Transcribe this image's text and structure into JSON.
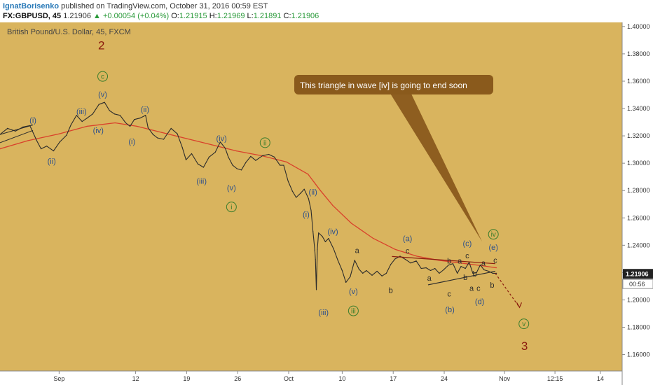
{
  "header": {
    "author": "IgnatBorisenko",
    "published": "published on TradingView.com, October 31, 2016 00:59 EST",
    "symbol": "FX:GBPUSD, 45",
    "last": "1.21906",
    "change": "+0.00054 (+0.04%)",
    "o_label": "O:",
    "o_value": "1.21915",
    "h_label": "H:",
    "h_value": "1.21969",
    "l_label": "L:",
    "l_value": "1.21891",
    "c_label": "C:",
    "c_value": "1.21906"
  },
  "chart_data": {
    "type": "line",
    "title": "British Pound/U.S. Dollar, 45, FXCM",
    "ylim": [
      1.148,
      1.403
    ],
    "xlim": [
      0,
      100
    ],
    "y_ticks": [
      "1.40000",
      "1.38000",
      "1.36000",
      "1.34000",
      "1.32000",
      "1.30000",
      "1.28000",
      "1.26000",
      "1.24000",
      "1.22000",
      "1.20000",
      "1.18000",
      "1.16000"
    ],
    "x_ticks": [
      {
        "label": "Sep",
        "x": 9.5
      },
      {
        "label": "12",
        "x": 21.8
      },
      {
        "label": "19",
        "x": 30.0
      },
      {
        "label": "26",
        "x": 38.2
      },
      {
        "label": "Oct",
        "x": 46.4
      },
      {
        "label": "10",
        "x": 55.0
      },
      {
        "label": "17",
        "x": 63.2
      },
      {
        "label": "24",
        "x": 71.4
      },
      {
        "label": "Nov",
        "x": 81.1
      },
      {
        "label": "12:15",
        "x": 89.2
      },
      {
        "label": "14",
        "x": 96.5
      }
    ],
    "last_price": "1.21906",
    "countdown": "00:56",
    "annotation": "This triangle in wave [iv] is going to end soon",
    "colors": {
      "background": "#d9b45e",
      "price": "#2b2b2b",
      "ma": "#d9412b",
      "wave_blue": "#2b4f8c",
      "wave_green": "#3a7d2c",
      "wave_red": "#8b1c0e",
      "callout": "#8a5a1c"
    },
    "series": [
      {
        "values": [
          [
            0.0,
            1.321
          ],
          [
            1.2,
            1.3255
          ],
          [
            2.5,
            1.3235
          ],
          [
            3.7,
            1.3265
          ],
          [
            4.8,
            1.3275
          ],
          [
            5.9,
            1.3165
          ],
          [
            6.6,
            1.3105
          ],
          [
            7.5,
            1.3125
          ],
          [
            8.6,
            1.309
          ],
          [
            9.6,
            1.3155
          ],
          [
            10.7,
            1.3205
          ],
          [
            11.4,
            1.328
          ],
          [
            12.3,
            1.335
          ],
          [
            13.2,
            1.3305
          ],
          [
            14.0,
            1.333
          ],
          [
            14.9,
            1.336
          ],
          [
            15.9,
            1.343
          ],
          [
            16.8,
            1.3445
          ],
          [
            17.6,
            1.3385
          ],
          [
            18.4,
            1.336
          ],
          [
            19.3,
            1.335
          ],
          [
            20.2,
            1.3295
          ],
          [
            20.9,
            1.327
          ],
          [
            21.6,
            1.332
          ],
          [
            22.5,
            1.333
          ],
          [
            23.4,
            1.335
          ],
          [
            23.8,
            1.326
          ],
          [
            24.6,
            1.321
          ],
          [
            25.3,
            1.3185
          ],
          [
            26.3,
            1.3175
          ],
          [
            27.5,
            1.3255
          ],
          [
            28.5,
            1.3215
          ],
          [
            29.3,
            1.3115
          ],
          [
            29.9,
            1.3025
          ],
          [
            30.8,
            1.307
          ],
          [
            31.8,
            1.2995
          ],
          [
            32.7,
            1.297
          ],
          [
            33.6,
            1.3045
          ],
          [
            34.6,
            1.308
          ],
          [
            35.4,
            1.3155
          ],
          [
            36.2,
            1.311
          ],
          [
            36.7,
            1.3045
          ],
          [
            37.4,
            1.2985
          ],
          [
            38.1,
            1.296
          ],
          [
            38.8,
            1.295
          ],
          [
            39.5,
            1.3005
          ],
          [
            40.3,
            1.305
          ],
          [
            41.1,
            1.302
          ],
          [
            42.2,
            1.3055
          ],
          [
            43.2,
            1.3065
          ],
          [
            44.1,
            1.3045
          ],
          [
            45.0,
            1.2985
          ],
          [
            45.6,
            1.2985
          ],
          [
            46.3,
            1.287
          ],
          [
            47.0,
            1.2795
          ],
          [
            47.6,
            1.275
          ],
          [
            48.3,
            1.278
          ],
          [
            48.9,
            1.281
          ],
          [
            49.6,
            1.274
          ],
          [
            50.0,
            1.2655
          ],
          [
            50.3,
            1.25
          ],
          [
            50.6,
            1.2365
          ],
          [
            50.7,
            1.2295
          ],
          [
            50.85,
            1.2075
          ],
          [
            51.0,
            1.237
          ],
          [
            51.2,
            1.249
          ],
          [
            51.8,
            1.2465
          ],
          [
            52.3,
            1.2425
          ],
          [
            52.8,
            1.245
          ],
          [
            53.6,
            1.2375
          ],
          [
            54.3,
            1.229
          ],
          [
            55.0,
            1.2215
          ],
          [
            55.6,
            1.2128
          ],
          [
            56.3,
            1.217
          ],
          [
            57.0,
            1.229
          ],
          [
            57.7,
            1.2225
          ],
          [
            58.3,
            1.2195
          ],
          [
            58.9,
            1.2215
          ],
          [
            59.8,
            1.218
          ],
          [
            60.6,
            1.221
          ],
          [
            61.4,
            1.2175
          ],
          [
            62.1,
            1.2195
          ],
          [
            62.8,
            1.226
          ],
          [
            63.5,
            1.23
          ],
          [
            64.3,
            1.232
          ],
          [
            65.2,
            1.2295
          ],
          [
            66.0,
            1.227
          ],
          [
            66.9,
            1.2285
          ],
          [
            67.7,
            1.223
          ],
          [
            68.5,
            1.2235
          ],
          [
            69.2,
            1.2215
          ],
          [
            69.9,
            1.223
          ],
          [
            70.6,
            1.2195
          ],
          [
            71.3,
            1.222
          ],
          [
            72.1,
            1.2255
          ],
          [
            72.8,
            1.2265
          ],
          [
            73.5,
            1.2195
          ],
          [
            74.1,
            1.2245
          ],
          [
            74.8,
            1.223
          ],
          [
            75.4,
            1.2275
          ],
          [
            76.0,
            1.2195
          ],
          [
            76.6,
            1.22
          ],
          [
            77.2,
            1.2255
          ],
          [
            77.8,
            1.222
          ],
          [
            78.5,
            1.221
          ],
          [
            79.2,
            1.2195
          ],
          [
            79.8,
            1.2195
          ]
        ]
      },
      {
        "values": [
          [
            0.0,
            1.3105
          ],
          [
            4.5,
            1.3165
          ],
          [
            9.5,
            1.3215
          ],
          [
            14.0,
            1.327
          ],
          [
            18.5,
            1.3295
          ],
          [
            22.0,
            1.327
          ],
          [
            26.0,
            1.3225
          ],
          [
            30.0,
            1.318
          ],
          [
            34.0,
            1.3135
          ],
          [
            38.0,
            1.309
          ],
          [
            42.0,
            1.3055
          ],
          [
            46.0,
            1.301
          ],
          [
            49.5,
            1.292
          ],
          [
            51.5,
            1.28
          ],
          [
            53.5,
            1.269
          ],
          [
            56.5,
            1.256
          ],
          [
            60.0,
            1.245
          ],
          [
            63.5,
            1.237
          ],
          [
            67.0,
            1.232
          ],
          [
            70.5,
            1.229
          ],
          [
            74.0,
            1.227
          ],
          [
            77.5,
            1.225
          ],
          [
            79.8,
            1.2235
          ]
        ]
      }
    ],
    "triangle": [
      {
        "from": [
          63.0,
          1.2318
        ],
        "to": [
          79.6,
          1.2265
        ]
      },
      {
        "from": [
          68.8,
          1.211
        ],
        "to": [
          79.6,
          1.221
        ]
      }
    ],
    "projection": {
      "from": [
        79.6,
        1.2195
      ],
      "to": [
        83.5,
        1.1945
      ]
    },
    "wave_labels": [
      {
        "text": "(i)",
        "x": 5.3,
        "y": 1.3315,
        "style": "blue"
      },
      {
        "text": "(ii)",
        "x": 8.3,
        "y": 1.3015,
        "style": "blue"
      },
      {
        "text": "(iii)",
        "x": 13.1,
        "y": 1.338,
        "style": "blue"
      },
      {
        "text": "(iv)",
        "x": 15.8,
        "y": 1.324,
        "style": "blue"
      },
      {
        "text": "(v)",
        "x": 16.5,
        "y": 1.3505,
        "style": "blue"
      },
      {
        "text": "c",
        "x": 16.5,
        "y": 1.3635,
        "style": "greenCircle"
      },
      {
        "text": "2",
        "x": 16.3,
        "y": 1.3863,
        "style": "bigRed"
      },
      {
        "text": "(i)",
        "x": 21.2,
        "y": 1.316,
        "style": "blue"
      },
      {
        "text": "(ii)",
        "x": 23.3,
        "y": 1.3395,
        "style": "blue"
      },
      {
        "text": "(iii)",
        "x": 32.4,
        "y": 1.287,
        "style": "blue"
      },
      {
        "text": "(iv)",
        "x": 35.6,
        "y": 1.3183,
        "style": "blue"
      },
      {
        "text": "(v)",
        "x": 37.2,
        "y": 1.2822,
        "style": "blue"
      },
      {
        "text": "i",
        "x": 37.2,
        "y": 1.268,
        "style": "greenCircle"
      },
      {
        "text": "ii",
        "x": 42.6,
        "y": 1.315,
        "style": "greenCircle"
      },
      {
        "text": "(ii)",
        "x": 50.3,
        "y": 1.279,
        "style": "blue"
      },
      {
        "text": "(i)",
        "x": 49.2,
        "y": 1.2625,
        "style": "blue"
      },
      {
        "text": "(iv)",
        "x": 53.5,
        "y": 1.25,
        "style": "blue"
      },
      {
        "text": "(iii)",
        "x": 52.0,
        "y": 1.191,
        "style": "blue"
      },
      {
        "text": "(v)",
        "x": 56.8,
        "y": 1.2062,
        "style": "blue"
      },
      {
        "text": "iii",
        "x": 56.8,
        "y": 1.192,
        "style": "greenCircle"
      },
      {
        "text": "a",
        "x": 57.4,
        "y": 1.2362,
        "style": "dark"
      },
      {
        "text": "b",
        "x": 62.8,
        "y": 1.207,
        "style": "dark"
      },
      {
        "text": "(a)",
        "x": 65.5,
        "y": 1.245,
        "style": "blue"
      },
      {
        "text": "c",
        "x": 65.5,
        "y": 1.236,
        "style": "dark"
      },
      {
        "text": "a",
        "x": 69.0,
        "y": 1.216,
        "style": "dark"
      },
      {
        "text": "b",
        "x": 72.2,
        "y": 1.2285,
        "style": "dark"
      },
      {
        "text": "c",
        "x": 72.2,
        "y": 1.2045,
        "style": "dark"
      },
      {
        "text": "(b)",
        "x": 72.3,
        "y": 1.193,
        "style": "blue"
      },
      {
        "text": "a",
        "x": 73.9,
        "y": 1.2285,
        "style": "dark"
      },
      {
        "text": "c",
        "x": 75.1,
        "y": 1.2325,
        "style": "dark"
      },
      {
        "text": "(c)",
        "x": 75.1,
        "y": 1.2415,
        "style": "blue"
      },
      {
        "text": "b",
        "x": 74.8,
        "y": 1.2165,
        "style": "dark"
      },
      {
        "text": "b",
        "x": 76.3,
        "y": 1.219,
        "style": "dark"
      },
      {
        "text": "a",
        "x": 77.7,
        "y": 1.227,
        "style": "dark"
      },
      {
        "text": "a",
        "x": 75.8,
        "y": 1.2085,
        "style": "dark"
      },
      {
        "text": "c",
        "x": 76.9,
        "y": 1.2085,
        "style": "dark"
      },
      {
        "text": "(d)",
        "x": 77.1,
        "y": 1.199,
        "style": "blue"
      },
      {
        "text": "b",
        "x": 79.1,
        "y": 1.211,
        "style": "dark"
      },
      {
        "text": "c",
        "x": 79.6,
        "y": 1.229,
        "style": "dark"
      },
      {
        "text": "(e)",
        "x": 79.3,
        "y": 1.2385,
        "style": "blue"
      },
      {
        "text": "iv",
        "x": 79.3,
        "y": 1.248,
        "style": "greenCircle"
      },
      {
        "text": "v",
        "x": 84.2,
        "y": 1.1825,
        "style": "greenCircle"
      },
      {
        "text": "3",
        "x": 84.3,
        "y": 1.1665,
        "style": "bigRed"
      }
    ]
  }
}
